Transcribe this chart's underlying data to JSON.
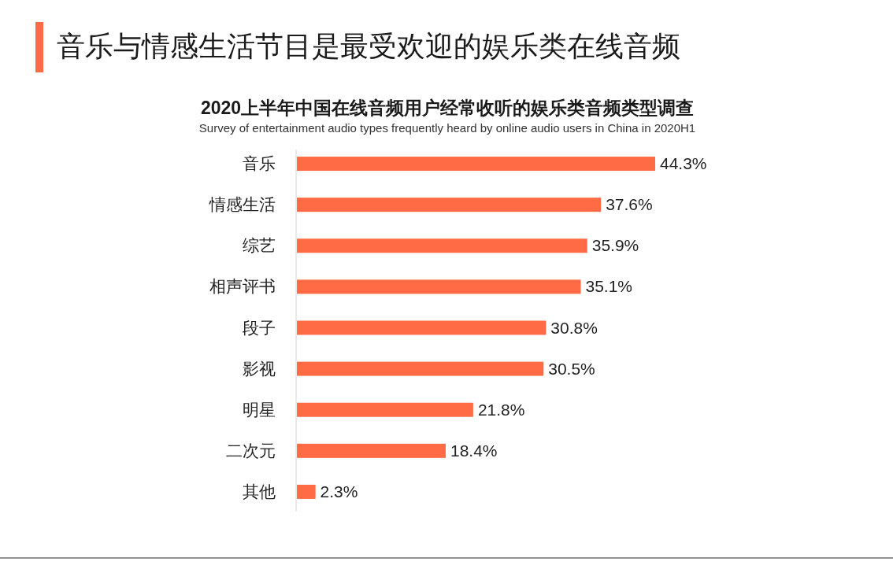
{
  "chart_data": {
    "type": "bar",
    "orientation": "horizontal",
    "title": "音乐与情感生活节目是最受欢迎的娱乐类在线音频",
    "subtitle": "2020上半年中国在线音频用户经常收听的娱乐类音频类型调查",
    "annotations": [
      "Survey of entertainment audio types frequently heard by online audio users in China in 2020H1"
    ],
    "categories": [
      "音乐",
      "情感生活",
      "综艺",
      "相声评书",
      "段子",
      "影视",
      "明星",
      "二次元",
      "其他"
    ],
    "values": [
      44.3,
      37.6,
      35.9,
      35.1,
      30.8,
      30.5,
      21.8,
      18.4,
      2.3
    ],
    "value_labels": [
      "44.3%",
      "37.6%",
      "35.9%",
      "35.1%",
      "30.8%",
      "30.5%",
      "21.8%",
      "18.4%",
      "2.3%"
    ],
    "color": "#ff6b45"
  }
}
